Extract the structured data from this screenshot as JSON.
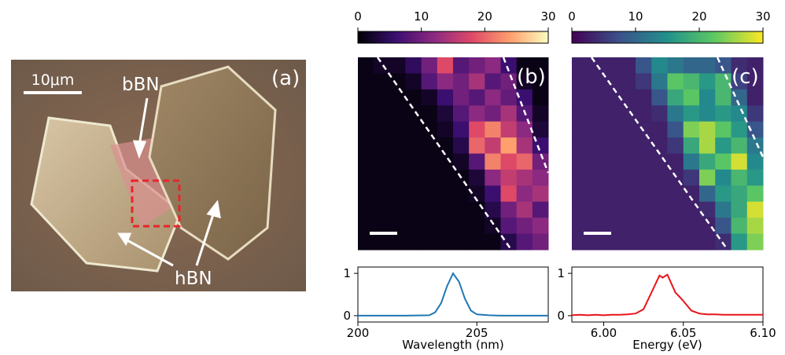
{
  "panel_a": {
    "label": "(a)",
    "scale_bar": "10μm",
    "annotations": [
      "bBN",
      "hBN"
    ]
  },
  "chart_data": [
    {
      "type": "heatmap",
      "panel_label": "(b)",
      "colormap": [
        "#000004",
        "#3b0f70",
        "#8c2981",
        "#de4968",
        "#fe9f6d",
        "#fcfdbf"
      ],
      "clim": [
        0,
        30
      ],
      "colorbar_ticks": [
        0,
        10,
        20,
        30
      ],
      "values": [
        [
          1,
          2,
          2,
          5,
          10,
          18,
          8,
          10,
          12,
          6,
          1,
          1
        ],
        [
          1,
          1,
          1,
          2,
          8,
          12,
          10,
          14,
          8,
          10,
          2,
          1
        ],
        [
          1,
          1,
          1,
          1,
          2,
          6,
          10,
          8,
          12,
          9,
          6,
          1
        ],
        [
          1,
          1,
          1,
          1,
          1,
          3,
          8,
          12,
          10,
          14,
          8,
          2
        ],
        [
          1,
          1,
          1,
          1,
          1,
          2,
          6,
          18,
          22,
          16,
          12,
          3
        ],
        [
          1,
          1,
          1,
          1,
          1,
          1,
          4,
          20,
          16,
          24,
          14,
          6
        ],
        [
          1,
          1,
          1,
          1,
          1,
          1,
          2,
          8,
          22,
          18,
          20,
          10
        ],
        [
          1,
          1,
          1,
          1,
          1,
          1,
          1,
          3,
          12,
          16,
          14,
          12
        ],
        [
          1,
          1,
          1,
          1,
          1,
          1,
          1,
          2,
          6,
          18,
          12,
          14
        ],
        [
          1,
          1,
          1,
          1,
          1,
          1,
          1,
          1,
          4,
          10,
          14,
          8
        ],
        [
          1,
          1,
          1,
          1,
          1,
          1,
          1,
          1,
          2,
          8,
          10,
          12
        ],
        [
          1,
          1,
          1,
          1,
          1,
          1,
          1,
          1,
          1,
          4,
          8,
          10
        ]
      ]
    },
    {
      "type": "heatmap",
      "panel_label": "(c)",
      "colormap": [
        "#440154",
        "#3b528b",
        "#21918c",
        "#5ec962",
        "#fde725"
      ],
      "clim": [
        0,
        30
      ],
      "colorbar_ticks": [
        0,
        10,
        20,
        30
      ],
      "values": [
        [
          3,
          3,
          3,
          3,
          8,
          14,
          12,
          10,
          10,
          8,
          4,
          3
        ],
        [
          3,
          3,
          3,
          3,
          5,
          12,
          22,
          20,
          16,
          20,
          6,
          3
        ],
        [
          3,
          3,
          3,
          3,
          3,
          8,
          18,
          22,
          14,
          20,
          10,
          3
        ],
        [
          3,
          3,
          3,
          3,
          3,
          4,
          12,
          16,
          14,
          16,
          14,
          5
        ],
        [
          3,
          3,
          3,
          3,
          3,
          3,
          8,
          24,
          26,
          22,
          16,
          8
        ],
        [
          3,
          3,
          3,
          3,
          3,
          3,
          5,
          18,
          26,
          16,
          20,
          12
        ],
        [
          3,
          3,
          3,
          3,
          3,
          3,
          3,
          12,
          18,
          22,
          28,
          14
        ],
        [
          3,
          3,
          3,
          3,
          3,
          3,
          3,
          5,
          24,
          14,
          20,
          16
        ],
        [
          3,
          3,
          3,
          3,
          3,
          3,
          3,
          3,
          10,
          16,
          18,
          22
        ],
        [
          3,
          3,
          3,
          3,
          3,
          3,
          3,
          3,
          4,
          12,
          18,
          28
        ],
        [
          3,
          3,
          3,
          3,
          3,
          3,
          3,
          3,
          3,
          8,
          20,
          26
        ],
        [
          3,
          3,
          3,
          3,
          3,
          3,
          3,
          3,
          3,
          4,
          16,
          24
        ]
      ]
    },
    {
      "type": "line",
      "xlabel": "Wavelength (nm)",
      "xlim": [
        200,
        208
      ],
      "xticks": [
        200,
        205
      ],
      "ylim": [
        -0.15,
        1.15
      ],
      "yticks": [
        0,
        1
      ],
      "x": [
        200,
        201,
        202,
        203,
        203.25,
        203.5,
        203.75,
        204,
        204.25,
        204.5,
        204.75,
        205,
        205.5,
        206,
        207,
        208
      ],
      "series": [
        {
          "color": "#1f77b4",
          "values": [
            0,
            0,
            0,
            0.01,
            0.08,
            0.3,
            0.7,
            1,
            0.8,
            0.4,
            0.12,
            0.03,
            0.01,
            0,
            0,
            0
          ]
        }
      ]
    },
    {
      "type": "line",
      "xlabel": "Energy (eV)",
      "xlim": [
        5.98,
        6.1
      ],
      "xticks": [
        {
          "value": 6,
          "label": "6.00"
        },
        6.05,
        {
          "value": 6.1,
          "label": "6.10"
        }
      ],
      "ylim": [
        -0.15,
        1.15
      ],
      "yticks": [
        0,
        1
      ],
      "x": [
        5.98,
        5.985,
        5.99,
        5.995,
        6,
        6.005,
        6.01,
        6.015,
        6.02,
        6.025,
        6.03,
        6.035,
        6.037,
        6.04,
        6.045,
        6.05,
        6.055,
        6.06,
        6.065,
        6.07,
        6.075,
        6.08,
        6.085,
        6.09,
        6.095,
        6.1
      ],
      "series": [
        {
          "color": "#e8141a",
          "values": [
            0.01,
            0.02,
            0.01,
            0.02,
            0.01,
            0.02,
            0.02,
            0.03,
            0.05,
            0.15,
            0.55,
            0.95,
            0.9,
            0.97,
            0.55,
            0.35,
            0.12,
            0.05,
            0.03,
            0.03,
            0.02,
            0.02,
            0.02,
            0.02,
            0.02,
            0.02
          ]
        }
      ]
    }
  ]
}
